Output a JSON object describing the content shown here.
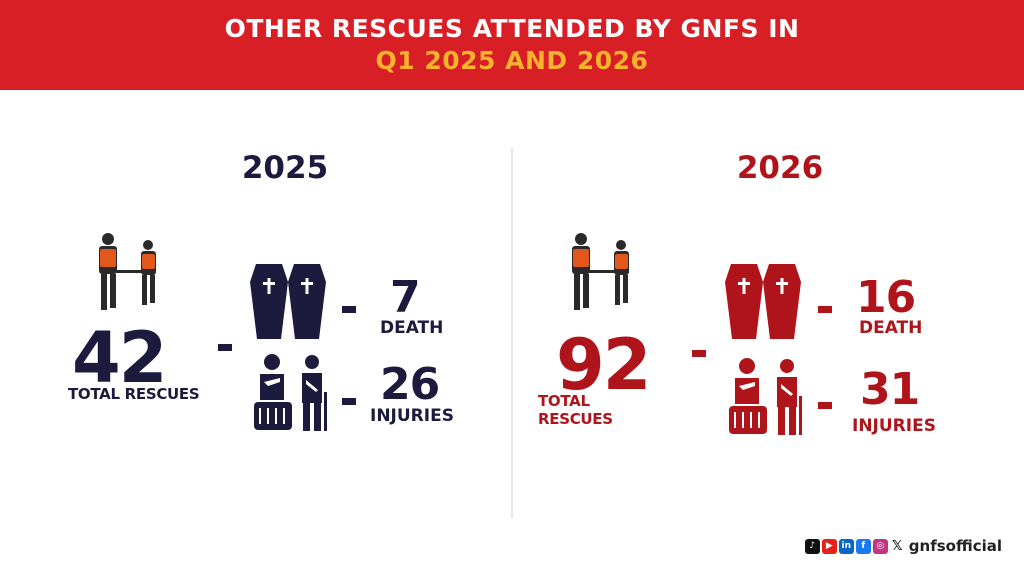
{
  "header": {
    "title_line1": "OTHER RESCUES ATTENDED BY GNFS IN",
    "title_line2": "Q1 2025 AND 2026"
  },
  "panels": [
    {
      "year": "2025",
      "total_rescues": "42",
      "total_label": "TOTAL RESCUES",
      "death_count": "7",
      "death_label": "DEATH",
      "injury_count": "26",
      "injury_label": "INJURIES",
      "color": "#1c1a3d"
    },
    {
      "year": "2026",
      "total_rescues": "92",
      "total_label": "TOTAL RESCUES",
      "death_count": "16",
      "death_label": "DEATH",
      "injury_count": "31",
      "injury_label": "INJURIES",
      "color": "#b0141b"
    }
  ],
  "footer": {
    "social_icons": [
      "tiktok-icon",
      "youtube-icon",
      "linkedin-icon",
      "facebook-icon",
      "instagram-icon",
      "x-icon"
    ],
    "handle": "gnfsofficial"
  },
  "colors": {
    "banner": "#d91f26",
    "banner_accent": "#f6b32b",
    "vest": "#e2571c"
  }
}
